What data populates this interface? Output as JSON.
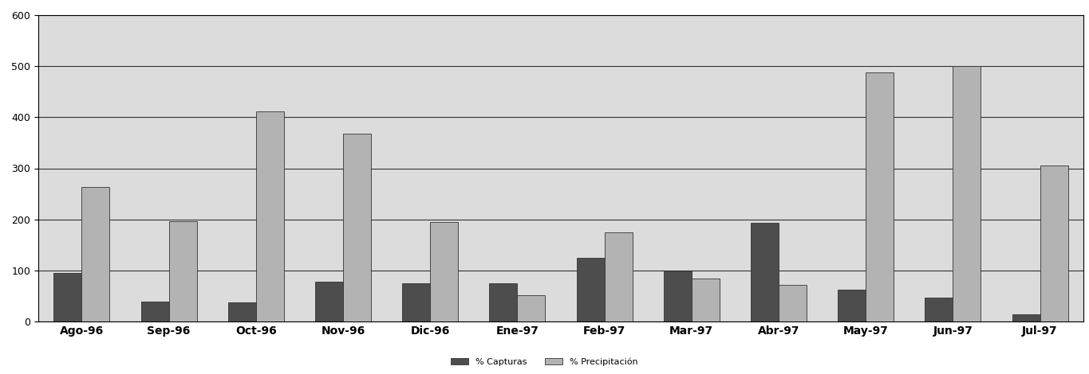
{
  "chart_data": {
    "type": "bar",
    "categories": [
      "Ago-96",
      "Sep-96",
      "Oct-96",
      "Nov-96",
      "Dic-96",
      "Ene-97",
      "Feb-97",
      "Mar-97",
      "Abr-97",
      "May-97",
      "Jun-97",
      "Jul-97"
    ],
    "series": [
      {
        "name": "% Capturas",
        "color": "#4d4d4d",
        "values": [
          95,
          40,
          38,
          78,
          75,
          75,
          125,
          98,
          193,
          62,
          47,
          15
        ]
      },
      {
        "name": "% Precipitación",
        "color": "#b3b3b3",
        "values": [
          263,
          197,
          412,
          368,
          195,
          52,
          175,
          85,
          72,
          487,
          500,
          305
        ]
      }
    ],
    "ylim": [
      0,
      600
    ],
    "yticks": [
      0,
      100,
      200,
      300,
      400,
      500,
      600
    ],
    "grid": true,
    "legend": "lower center"
  }
}
